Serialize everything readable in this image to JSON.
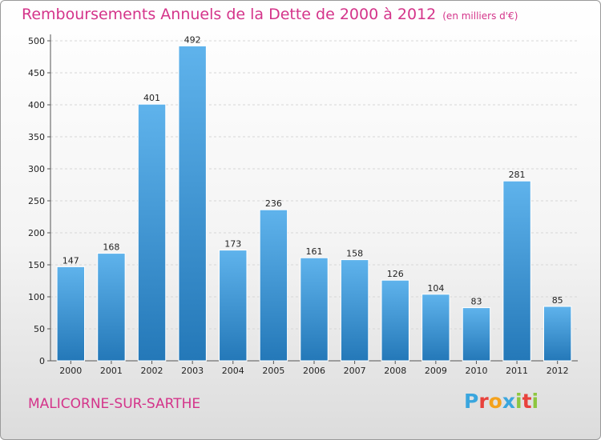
{
  "title": "Remboursements Annuels de la Dette de 2000 à 2012",
  "subtitle": "(en milliers d'€)",
  "town": "MALICORNE-SUR-SARTHE",
  "logo": {
    "text": "Proxiti",
    "colors": [
      "#3aa6de",
      "#e8423c",
      "#f4a21c",
      "#3aa6de",
      "#8dc63f",
      "#e8423c",
      "#8dc63f"
    ]
  },
  "colors": {
    "bar": "#3f97d8",
    "bar_light": "#5fb3ec",
    "bar_dark": "#2478b8",
    "title": "#d4348a",
    "grid": "#d6d6d6",
    "axis": "#555555"
  },
  "chart_data": {
    "type": "bar",
    "title": "Remboursements Annuels de la Dette de 2000 à 2012",
    "subtitle": "(en milliers d'€)",
    "categories": [
      "2000",
      "2001",
      "2002",
      "2003",
      "2004",
      "2005",
      "2006",
      "2007",
      "2008",
      "2009",
      "2010",
      "2011",
      "2012"
    ],
    "values": [
      147,
      168,
      401,
      492,
      173,
      236,
      161,
      158,
      126,
      104,
      83,
      281,
      85
    ],
    "ylim": [
      0,
      500
    ],
    "yticks": [
      0,
      50,
      100,
      150,
      200,
      250,
      300,
      350,
      400,
      450,
      500
    ],
    "grid": true,
    "legend": "none"
  }
}
